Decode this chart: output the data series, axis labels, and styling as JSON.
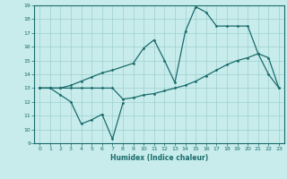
{
  "xlabel": "Humidex (Indice chaleur)",
  "ylabel": "",
  "background_color": "#c8ecec",
  "grid_color": "#9ecece",
  "line_color": "#1a6b6b",
  "xlim": [
    -0.5,
    23.5
  ],
  "ylim": [
    9,
    19
  ],
  "xticks": [
    0,
    1,
    2,
    3,
    4,
    5,
    6,
    7,
    8,
    9,
    10,
    11,
    12,
    13,
    14,
    15,
    16,
    17,
    18,
    19,
    20,
    21,
    22,
    23
  ],
  "yticks": [
    9,
    10,
    11,
    12,
    13,
    14,
    15,
    16,
    17,
    18,
    19
  ],
  "line1_x": [
    0,
    1,
    2,
    3,
    4,
    5,
    6,
    7,
    8
  ],
  "line1_y": [
    13.0,
    13.0,
    12.5,
    12.0,
    10.4,
    10.7,
    11.1,
    9.3,
    11.9
  ],
  "line2_x": [
    0,
    1,
    2,
    3,
    4,
    5,
    6,
    7,
    8,
    9,
    10,
    11,
    12,
    13,
    14,
    15,
    16,
    17,
    18,
    19,
    20,
    21,
    22,
    23
  ],
  "line2_y": [
    13.0,
    13.0,
    13.0,
    13.0,
    13.0,
    13.0,
    13.0,
    13.0,
    12.2,
    12.3,
    12.5,
    12.6,
    12.8,
    13.0,
    13.2,
    13.5,
    13.9,
    14.3,
    14.7,
    15.0,
    15.2,
    15.5,
    15.2,
    13.0
  ],
  "line3_x": [
    0,
    1,
    2,
    3,
    4,
    5,
    6,
    7,
    9,
    10,
    11,
    12,
    13,
    14,
    15,
    16,
    17,
    18,
    19,
    20,
    21,
    22,
    23
  ],
  "line3_y": [
    13.0,
    13.0,
    13.0,
    13.2,
    13.5,
    13.8,
    14.1,
    14.3,
    14.8,
    15.9,
    16.5,
    15.0,
    13.4,
    17.1,
    18.9,
    18.5,
    17.5,
    17.5,
    17.5,
    17.5,
    15.5,
    14.0,
    13.0
  ]
}
